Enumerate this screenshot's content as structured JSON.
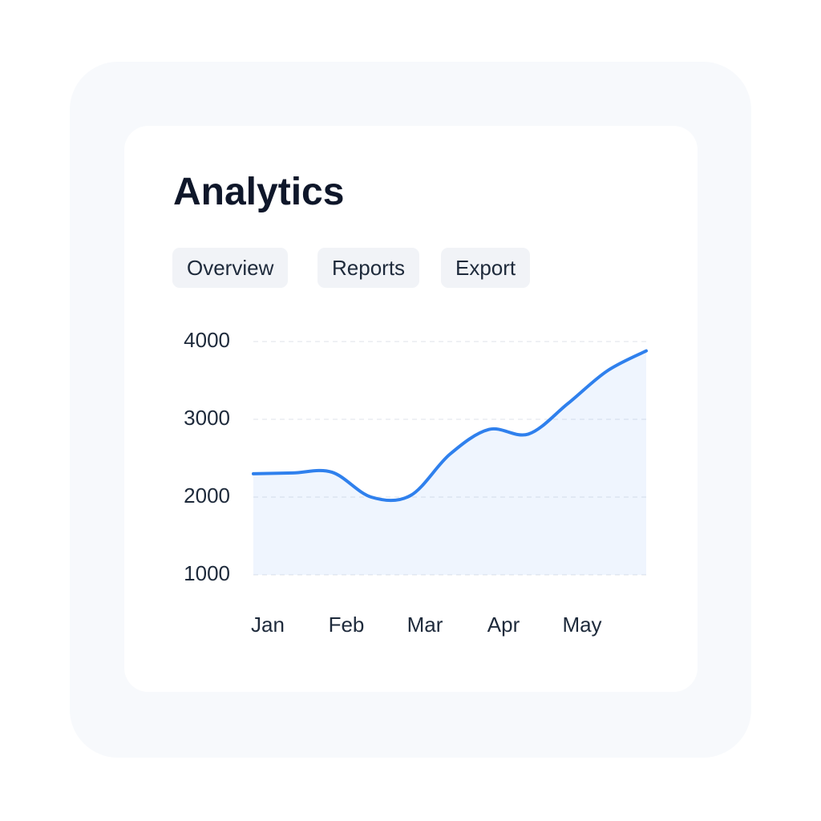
{
  "header": {
    "title": "Analytics"
  },
  "tabs": [
    "Overview",
    "Reports",
    "Export"
  ],
  "chart_data": {
    "type": "area",
    "categories": [
      "Jan",
      null,
      "Feb",
      null,
      "Mar",
      null,
      "Apr",
      null,
      "May",
      null,
      null
    ],
    "values": [
      2300,
      2310,
      2320,
      2000,
      2020,
      2550,
      2870,
      2810,
      3200,
      3620,
      3880
    ],
    "color": "#2f80ed",
    "ylim": [
      1000,
      4000
    ],
    "yticks": [
      1000,
      2000,
      3000,
      4000
    ],
    "grid": true
  }
}
